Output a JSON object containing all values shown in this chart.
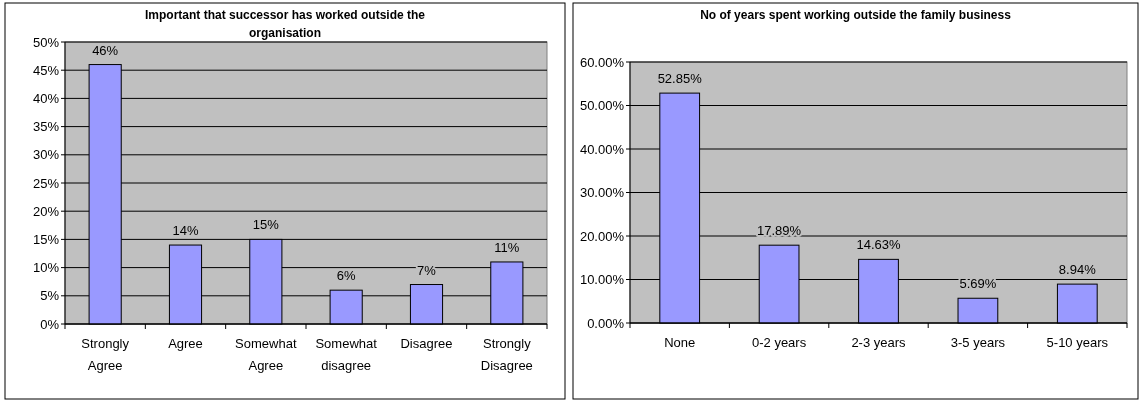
{
  "chart_data": [
    {
      "type": "bar",
      "title": "Important that successor has worked outside the organisation",
      "categories": [
        "Strongly Agree",
        "Agree",
        "Somewhat Agree",
        "Somewhat disagree",
        "Disagree",
        "Strongly Disagree"
      ],
      "values": [
        46,
        14,
        15,
        6,
        7,
        11
      ],
      "value_labels": [
        "46%",
        "14%",
        "15%",
        "6%",
        "7%",
        "11%"
      ],
      "color": "#9999ff",
      "ylim": [
        0,
        50
      ],
      "yticks": [
        {
          "value": 0,
          "label": "0%"
        },
        {
          "value": 5,
          "label": "5%"
        },
        {
          "value": 10,
          "label": "10%"
        },
        {
          "value": 15,
          "label": "15%"
        },
        {
          "value": 20,
          "label": "20%"
        },
        {
          "value": 25,
          "label": "25%"
        },
        {
          "value": 30,
          "label": "30%"
        },
        {
          "value": 35,
          "label": "35%"
        },
        {
          "value": 40,
          "label": "40%"
        },
        {
          "value": 45,
          "label": "45%"
        },
        {
          "value": 50,
          "label": "50%"
        }
      ],
      "grid": "y"
    },
    {
      "type": "bar",
      "title": "No of years spent working outside the family business",
      "categories": [
        "None",
        "0-2 years",
        "2-3 years",
        "3-5 years",
        "5-10 years"
      ],
      "values": [
        52.85,
        17.89,
        14.63,
        5.69,
        8.94
      ],
      "value_labels": [
        "52.85%",
        "17.89%",
        "14.63%",
        "5.69%",
        "8.94%"
      ],
      "color": "#9999ff",
      "ylim": [
        0,
        60
      ],
      "yticks": [
        {
          "value": 0,
          "label": "0.00%"
        },
        {
          "value": 10,
          "label": "10.00%"
        },
        {
          "value": 20,
          "label": "20.00%"
        },
        {
          "value": 30,
          "label": "30.00%"
        },
        {
          "value": 40,
          "label": "40.00%"
        },
        {
          "value": 50,
          "label": "50.00%"
        },
        {
          "value": 60,
          "label": "60.00%"
        }
      ],
      "grid": "y"
    }
  ]
}
